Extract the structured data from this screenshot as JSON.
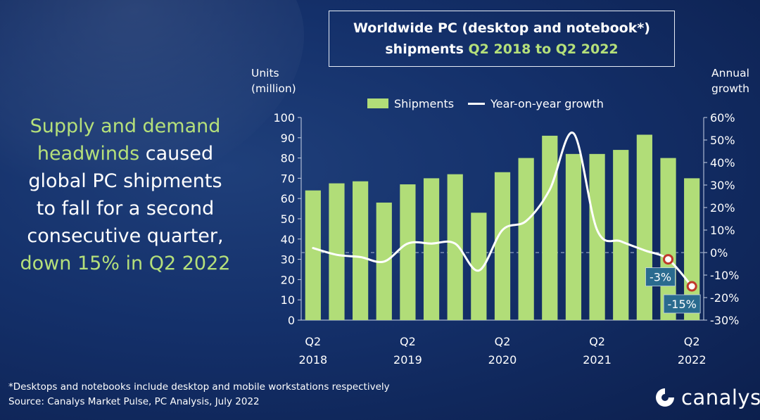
{
  "title_box": {
    "line1": "Worldwide PC (desktop and notebook*)",
    "line2_prefix": "shipments ",
    "line2_accent": "Q2 2018 to Q2 2022"
  },
  "headline": {
    "accent1": "Supply and demand",
    "accent2": "headwinds",
    "text1": " caused",
    "text2": "global PC shipments",
    "text3": "to fall for a second",
    "text4": "consecutive quarter,",
    "accent3": "down 15% in Q2 2022"
  },
  "footnote": {
    "line1": "*Desktops and notebooks include desktop and mobile workstations respectively",
    "line2": "Source: Canalys Market Pulse, PC Analysis, July 2022"
  },
  "logo": {
    "text": "canalys"
  },
  "colors": {
    "bar": "#b1dd78",
    "line": "#ffffff",
    "accent": "#b5e07a",
    "marker": "#c0392b",
    "callout": "#2a6b8f"
  },
  "chart_data": {
    "type": "bar",
    "ylabel": "Units (million)",
    "y2label": "Annual growth",
    "ylim": [
      0,
      100
    ],
    "y2lim": [
      -30,
      60
    ],
    "yticks": [
      "0",
      "10",
      "20",
      "30",
      "40",
      "50",
      "60",
      "70",
      "80",
      "90",
      "100"
    ],
    "y2ticks": [
      "-30%",
      "-20%",
      "-10%",
      "0%",
      "10%",
      "20%",
      "30%",
      "40%",
      "50%",
      "60%"
    ],
    "x_tick_labels": [
      {
        "index": 0,
        "line1": "Q2",
        "line2": "2018"
      },
      {
        "index": 4,
        "line1": "Q2",
        "line2": "2019"
      },
      {
        "index": 8,
        "line1": "Q2",
        "line2": "2020"
      },
      {
        "index": 12,
        "line1": "Q2",
        "line2": "2021"
      },
      {
        "index": 16,
        "line1": "Q2",
        "line2": "2022"
      }
    ],
    "legend": {
      "placement": "top",
      "bar_label": "Shipments",
      "line_label": "Year-on-year growth"
    },
    "series": [
      {
        "name": "Shipments",
        "type": "bar",
        "values": [
          64,
          67.5,
          68.5,
          58,
          67,
          70,
          72,
          53,
          73,
          80,
          91,
          82,
          82,
          84,
          91.5,
          80,
          70
        ]
      },
      {
        "name": "Year-on-year growth",
        "type": "line",
        "values": [
          2,
          -1,
          -2,
          -4,
          4,
          4,
          4,
          -8,
          10,
          14,
          28,
          53,
          10,
          5,
          1,
          -3,
          -15
        ]
      }
    ],
    "callouts": [
      {
        "index": 15,
        "label": "-3%"
      },
      {
        "index": 16,
        "label": "-15%"
      }
    ],
    "zero_growth_reference": "dashed"
  }
}
